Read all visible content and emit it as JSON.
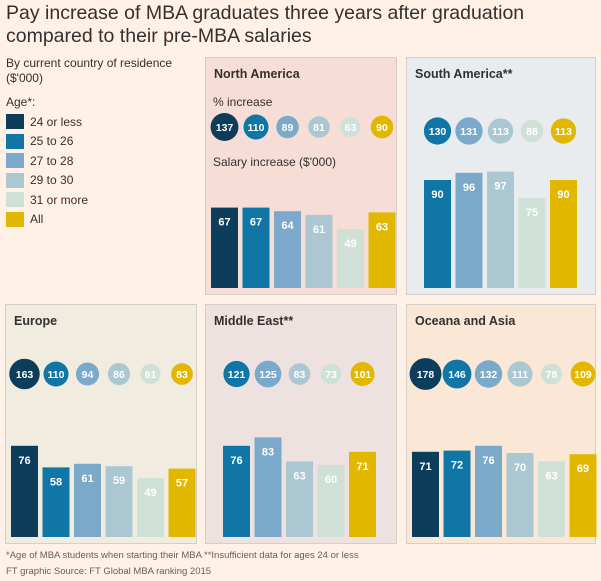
{
  "title": "Pay increase of MBA graduates three years after graduation compared to their pre-MBA salaries",
  "subtitle": "By current country of residence ($'000)",
  "legend": {
    "title": "Age*:",
    "items": [
      {
        "label": "24 or less",
        "color": "#0c3d5a"
      },
      {
        "label": "25 to 26",
        "color": "#0f76a6"
      },
      {
        "label": "27 to 28",
        "color": "#7ba9c9"
      },
      {
        "label": "29 to 30",
        "color": "#abc7d2"
      },
      {
        "label": "31 or more",
        "color": "#cfe0d6"
      },
      {
        "label": "All",
        "color": "#e2b700"
      }
    ]
  },
  "labels": {
    "pct_increase": "% increase",
    "salary_increase": "Salary increase ($'000)"
  },
  "chart_data": [
    {
      "type": "bar",
      "title": "North America",
      "background": "#f6ddd6",
      "categories": [
        "24 or less",
        "25 to 26",
        "27 to 28",
        "29 to 30",
        "31 or more",
        "All"
      ],
      "pct_increase": [
        137,
        110,
        89,
        81,
        63,
        90
      ],
      "salary_increase": [
        67,
        67,
        64,
        61,
        49,
        63
      ],
      "ylim": [
        0,
        100
      ]
    },
    {
      "type": "bar",
      "title": "South America**",
      "background": "#e8ecef",
      "categories": [
        "25 to 26",
        "27 to 28",
        "29 to 30",
        "31 or more",
        "All"
      ],
      "pct_increase": [
        130,
        131,
        113,
        88,
        113
      ],
      "salary_increase": [
        90,
        96,
        97,
        75,
        90
      ],
      "ylim": [
        0,
        100
      ]
    },
    {
      "type": "bar",
      "title": "Europe",
      "background": "#f0ece0",
      "categories": [
        "24 or less",
        "25 to 26",
        "27 to 28",
        "29 to 30",
        "31 or more",
        "All"
      ],
      "pct_increase": [
        163,
        110,
        94,
        86,
        61,
        83
      ],
      "salary_increase": [
        76,
        58,
        61,
        59,
        49,
        57
      ],
      "ylim": [
        0,
        100
      ]
    },
    {
      "type": "bar",
      "title": "Middle East**",
      "background": "#ede2df",
      "categories": [
        "25 to 26",
        "27 to 28",
        "29 to 30",
        "31 or more",
        "All"
      ],
      "pct_increase": [
        121,
        125,
        83,
        73,
        101
      ],
      "salary_increase": [
        76,
        83,
        63,
        60,
        71
      ],
      "ylim": [
        0,
        100
      ]
    },
    {
      "type": "bar",
      "title": "Oceana and Asia",
      "background": "#fbe7d6",
      "categories": [
        "24 or less",
        "25 to 26",
        "27 to 28",
        "29 to 30",
        "31 or more",
        "All"
      ],
      "pct_increase": [
        178,
        146,
        132,
        111,
        78,
        109
      ],
      "salary_increase": [
        71,
        72,
        76,
        70,
        63,
        69
      ],
      "ylim": [
        0,
        100
      ]
    }
  ],
  "footnote": "*Age of MBA students when starting their MBA    **Insufficient data for ages 24 or less",
  "source": "FT graphic    Source: FT Global MBA ranking 2015"
}
